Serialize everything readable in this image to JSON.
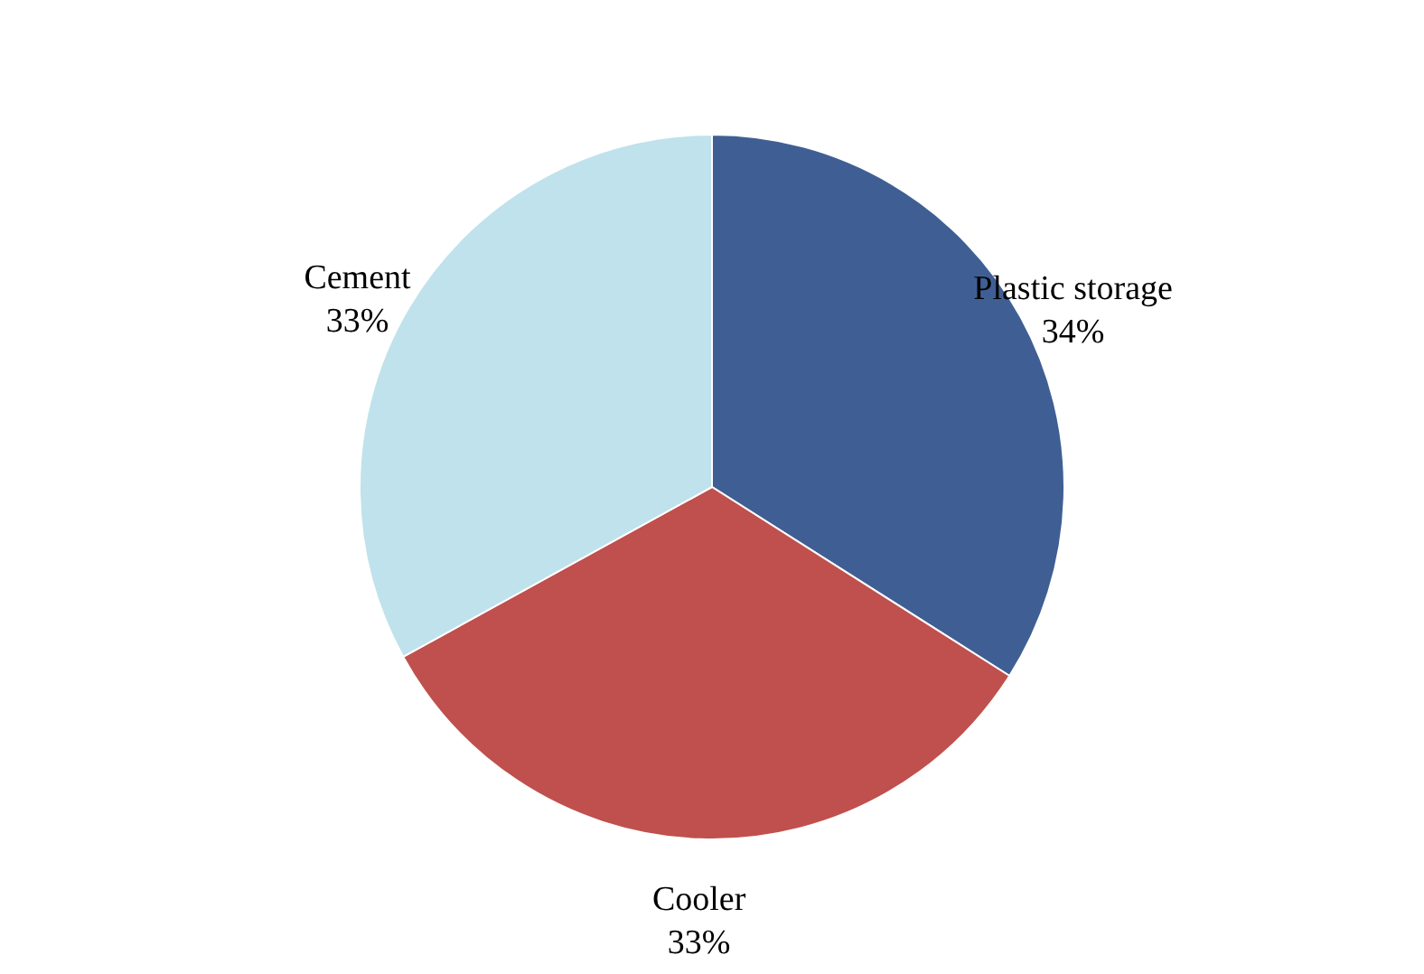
{
  "chart_data": {
    "type": "pie",
    "categories": [
      "Plastic storage",
      "Cooler",
      "Cement"
    ],
    "values": [
      34,
      33,
      33
    ],
    "value_labels": [
      "34%",
      "33%",
      "33%"
    ],
    "colors": [
      "#3f5f94",
      "#c0504d",
      "#bfe2ec"
    ],
    "legend": false
  }
}
